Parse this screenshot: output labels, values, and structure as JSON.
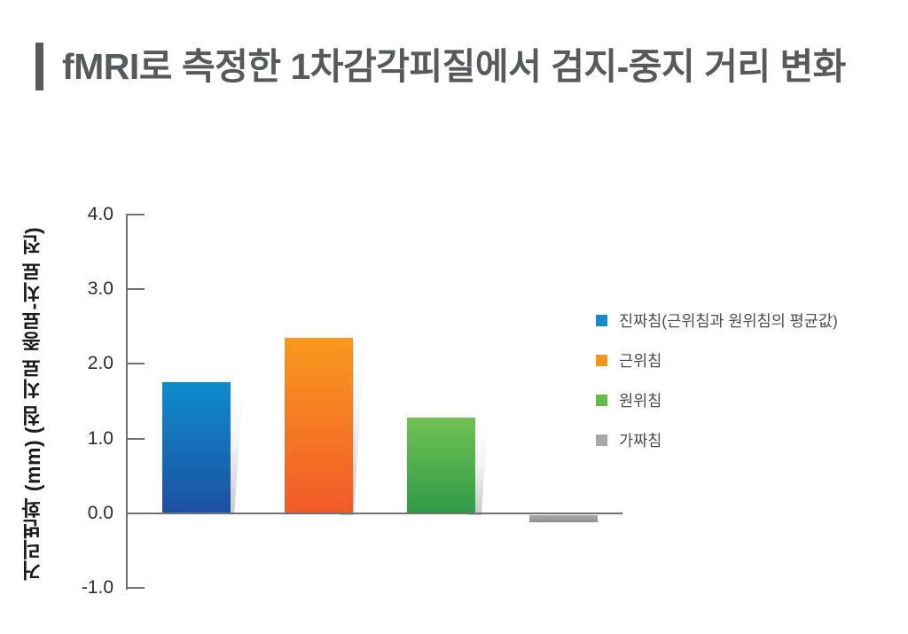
{
  "title": {
    "text": "fMRI로 측정한 1차감각피질에서 검지-중지 거리 변화",
    "accent_color": "#58595b",
    "text_color": "#58595b"
  },
  "chart_data": {
    "type": "bar",
    "title": "fMRI로 측정한 1차감각피질에서 검지-중지 거리 변화",
    "xlabel": "",
    "ylabel": "거리변화 (mm) (침 치료 종료-치료 전)",
    "ylim": [
      -1.0,
      4.0
    ],
    "ytick_labels": [
      "4.0",
      "3.0",
      "2.0",
      "1.0",
      "0.0",
      "-1.0"
    ],
    "grid": "zero-baseline-only",
    "legend_position": "right",
    "categories": [
      "진짜침(근위침과 원위침의 평균값)",
      "근위침",
      "원위침",
      "가짜침"
    ],
    "values": [
      1.75,
      2.35,
      1.28,
      -0.1
    ],
    "bar_colors": [
      {
        "top": "#0e8ccd",
        "bottom": "#1d50a2",
        "legend": "#148ccd"
      },
      {
        "top": "#f8991d",
        "bottom": "#f15a29",
        "legend": "#f7941d"
      },
      {
        "top": "#72c155",
        "bottom": "#2e9b47",
        "legend": "#62bb46"
      },
      {
        "top": "#a6a8ab",
        "bottom": "#8e9093",
        "legend": "#a7a9ac"
      }
    ],
    "axis_color": "#717274",
    "tick_label_color": "#2b2b2d"
  },
  "legend": {
    "items": [
      {
        "label": "진짜침(근위침과 원위침의 평균값)"
      },
      {
        "label": "근위침"
      },
      {
        "label": "원위침"
      },
      {
        "label": "가짜침"
      }
    ]
  }
}
